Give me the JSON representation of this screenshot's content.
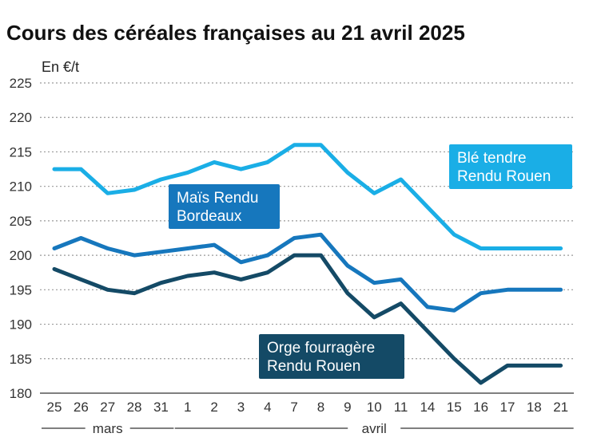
{
  "chart_data": {
    "type": "line",
    "title": "Cours des céréales françaises au 21 avril 2025",
    "ylabel": "En €/t",
    "ylim": [
      180,
      225
    ],
    "yticks": [
      180,
      185,
      190,
      195,
      200,
      205,
      210,
      215,
      220,
      225
    ],
    "categories": [
      "25",
      "26",
      "27",
      "28",
      "31",
      "1",
      "2",
      "3",
      "4",
      "7",
      "8",
      "9",
      "10",
      "11",
      "14",
      "15",
      "16",
      "17",
      "18",
      "21"
    ],
    "months": [
      {
        "label": "mars",
        "from": 0,
        "to": 4
      },
      {
        "label": "avril",
        "from": 5,
        "to": 19
      }
    ],
    "grid": true,
    "series": [
      {
        "name": "Blé tendre Rendu Rouen",
        "label_lines": [
          "Blé tendre",
          "Rendu Rouen"
        ],
        "color": "#1aaee6",
        "values": [
          212.5,
          212.5,
          209,
          209.5,
          211,
          212,
          213.5,
          212.5,
          213.5,
          216,
          216,
          212,
          209,
          211,
          207,
          203,
          201,
          201,
          201,
          201
        ]
      },
      {
        "name": "Maïs Rendu Bordeaux",
        "label_lines": [
          "Maïs Rendu",
          "Bordeaux"
        ],
        "color": "#1677bd",
        "values": [
          201,
          202.5,
          201,
          200,
          200.5,
          201,
          201.5,
          199,
          200,
          202.5,
          203,
          198.5,
          196,
          196.5,
          192.5,
          192,
          194.5,
          195,
          195,
          195
        ]
      },
      {
        "name": "Orge fourragère Rendu Rouen",
        "label_lines": [
          "Orge fourragère",
          "Rendu Rouen"
        ],
        "color": "#144a66",
        "values": [
          198,
          196.5,
          195,
          194.5,
          196,
          197,
          197.5,
          196.5,
          197.5,
          200,
          200,
          194.5,
          191,
          193,
          189,
          185,
          181.5,
          184,
          184,
          184
        ]
      }
    ]
  }
}
